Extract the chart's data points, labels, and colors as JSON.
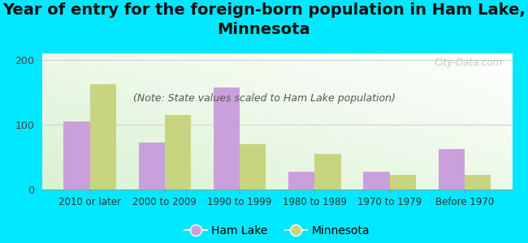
{
  "title": "Year of entry for the foreign-born population in Ham Lake,\nMinnesota",
  "subtitle": "(Note: State values scaled to Ham Lake population)",
  "categories": [
    "2010 or later",
    "2000 to 2009",
    "1990 to 1999",
    "1980 to 1989",
    "1970 to 1979",
    "Before 1970"
  ],
  "ham_lake": [
    105,
    73,
    158,
    27,
    28,
    62
  ],
  "minnesota": [
    162,
    115,
    70,
    55,
    22,
    23
  ],
  "ham_lake_color": "#c9a0dc",
  "minnesota_color": "#c8d480",
  "background_color": "#00e8ff",
  "ylim": [
    0,
    210
  ],
  "yticks": [
    0,
    100,
    200
  ],
  "bar_width": 0.35,
  "title_fontsize": 14,
  "subtitle_fontsize": 9,
  "watermark": "City-Data.com"
}
